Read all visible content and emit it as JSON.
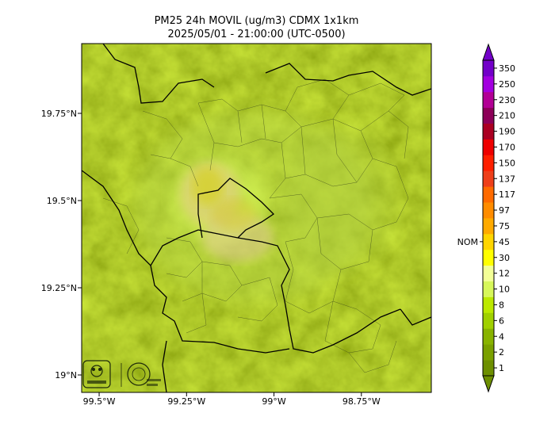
{
  "title": {
    "line1": "PM25 24h MOVIL (ug/m3) CDMX 1x1km",
    "line2": "2025/05/01 - 21:00:00 (UTC-0500)"
  },
  "map": {
    "lat_ticks": [
      {
        "value": 19.75,
        "label": "19.75°N"
      },
      {
        "value": 19.5,
        "label": "19.5°N"
      },
      {
        "value": 19.25,
        "label": "19.25°N"
      },
      {
        "value": 19.0,
        "label": "19°N"
      }
    ],
    "lon_ticks": [
      {
        "value": -99.5,
        "label": "99.5°W"
      },
      {
        "value": -99.25,
        "label": "99.25°W"
      },
      {
        "value": -99.0,
        "label": "99°W"
      },
      {
        "value": -98.75,
        "label": "98.75°W"
      }
    ],
    "lat_range": [
      18.95,
      19.95
    ],
    "lon_range": [
      -99.55,
      -98.55
    ],
    "logos": [
      "sedema-logo",
      "cdmx-seal"
    ]
  },
  "colorbar": {
    "nom_label": "NOM",
    "nom_level": "45",
    "levels": [
      {
        "label": "1",
        "color": "#6d8f00"
      },
      {
        "label": "2",
        "color": "#7aa000"
      },
      {
        "label": "4",
        "color": "#88b300"
      },
      {
        "label": "6",
        "color": "#a0d000"
      },
      {
        "label": "8",
        "color": "#bce900"
      },
      {
        "label": "10",
        "color": "#d7f75a"
      },
      {
        "label": "12",
        "color": "#f3ff96"
      },
      {
        "label": "30",
        "color": "#ffff00"
      },
      {
        "label": "45",
        "color": "#ffd500"
      },
      {
        "label": "75",
        "color": "#ffaa00"
      },
      {
        "label": "97",
        "color": "#ff8c00"
      },
      {
        "label": "117",
        "color": "#ff6a00"
      },
      {
        "label": "137",
        "color": "#ee3f1a"
      },
      {
        "label": "150",
        "color": "#ff1f00"
      },
      {
        "label": "170",
        "color": "#ee0000"
      },
      {
        "label": "190",
        "color": "#aa0022"
      },
      {
        "label": "210",
        "color": "#8c0058"
      },
      {
        "label": "230",
        "color": "#b20095"
      },
      {
        "label": "250",
        "color": "#a300e0"
      },
      {
        "label": "350",
        "color": "#7300c9"
      }
    ]
  }
}
